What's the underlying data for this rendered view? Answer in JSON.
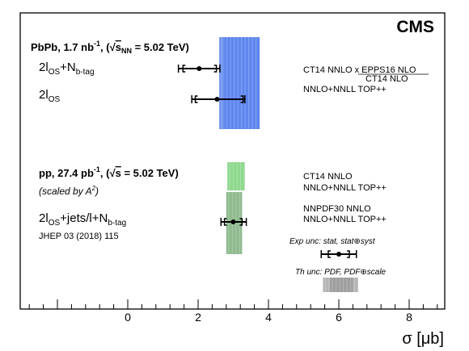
{
  "chart_data": {
    "type": "scatter",
    "experiment": "CMS",
    "x_axis": {
      "label": "σ [μb]",
      "range": [
        -3.5,
        9.0
      ],
      "ticks": [
        0,
        2,
        4,
        6,
        8
      ],
      "tick_labels": [
        "0",
        "2",
        "4",
        "6",
        "8"
      ]
    },
    "pbpb": {
      "header_text": "PbPb, 1.7 nb",
      "header_sup": "-1",
      "header_energy": ", (√",
      "header_s": "s",
      "header_s_sub": "NN",
      "header_tail": " = 5.02 TeV)",
      "measurements": [
        {
          "label_main": "2l",
          "label_sub": "OS",
          "label_rest": "+N",
          "label_rest_sub": "b-tag",
          "value": 2.03,
          "stat_err": [
            0.46,
            0.49
          ],
          "total_err": [
            0.59,
            0.59
          ]
        },
        {
          "label_main": "2l",
          "label_sub": "OS",
          "label_rest": "",
          "label_rest_sub": "",
          "value": 2.54,
          "stat_err": [
            0.62,
            0.74
          ],
          "total_err": [
            0.72,
            0.79
          ]
        }
      ],
      "theory": [
        {
          "name_prefix": "CT14 NNLO x ",
          "name_numerator": "EPPS16 NLO",
          "name_denominator": "CT14 NLO",
          "band": [
            2.75,
            3.75
          ],
          "color": "#5e86ee"
        },
        {
          "name": "NNLO+NNLL TOP++",
          "band": [
            2.6,
            3.6
          ],
          "color": "#6f93f0"
        }
      ]
    },
    "pp": {
      "header_text": "pp, 27.4 pb",
      "header_sup": "-1",
      "header_energy": ", (√",
      "header_s": "s",
      "header_tail": " = 5.02 TeV)",
      "scaling_text": "(scaled by A",
      "scaling_sup": "2",
      "scaling_close": ")",
      "measurement": {
        "label_main": "2l",
        "label_sub": "OS",
        "label_rest": "+jets/l+N",
        "label_rest_sub": "b-tag",
        "reference": "JHEP 03 (2018) 115",
        "value": 3.0,
        "stat_err": [
          0.25,
          0.25
        ],
        "total_err": [
          0.35,
          0.37
        ]
      },
      "theory": [
        {
          "name": "CT14 NNLO",
          "band": [
            2.83,
            3.33
          ],
          "color": "#8fd98f"
        },
        {
          "name": "NNLO+NNLL TOP++",
          "band": [
            2.83,
            3.33
          ],
          "color": "#9bdc9b"
        },
        {
          "name": "NNPDF30 NNLO",
          "band": [
            2.8,
            3.25
          ],
          "color": "#8fba8f"
        },
        {
          "name": "NNLO+NNLL TOP++",
          "band": [
            2.8,
            3.25
          ],
          "color": "#9ab99a"
        }
      ]
    },
    "legend": {
      "exp_text": "Exp unc: stat, stat⊕syst",
      "exp_example": {
        "value": 6.0,
        "stat_err": [
          0.3,
          0.3
        ],
        "total_err": [
          0.5,
          0.5
        ]
      },
      "th_text": "Th unc: PDF, PDF⊕scale",
      "th_example": {
        "band": [
          5.55,
          6.55
        ],
        "inner": [
          5.75,
          6.4
        ],
        "color": "#b5b5b5"
      }
    }
  }
}
